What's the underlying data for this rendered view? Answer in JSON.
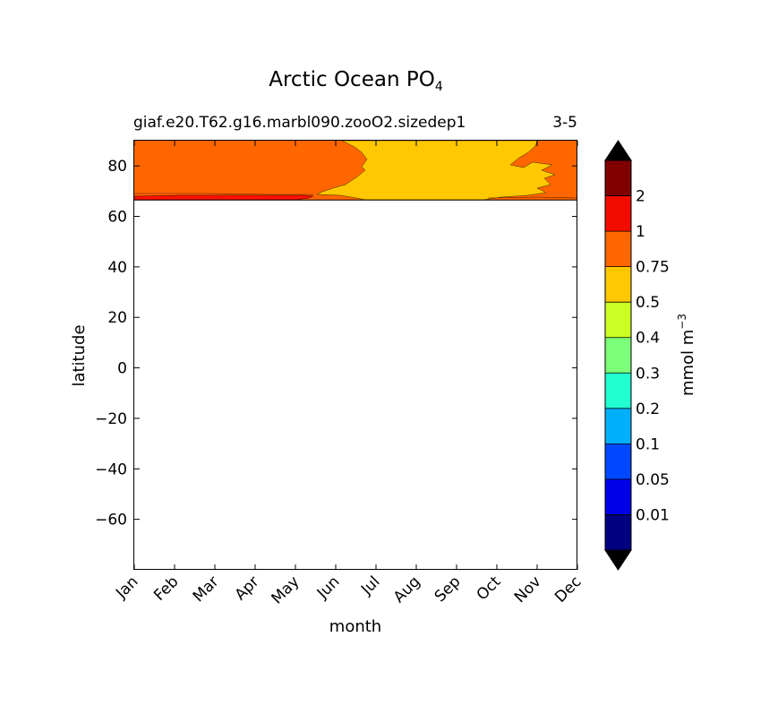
{
  "chart_data": {
    "type": "heatmap",
    "title": "Arctic Ocean PO",
    "title_subscript": "4",
    "subtitle_left": "giaf.e20.T62.g16.marbl090.zooO2.sizedep1",
    "subtitle_right": "3-5",
    "xlabel": "month",
    "ylabel": "latitude",
    "x_categories": [
      "Jan",
      "Feb",
      "Mar",
      "Apr",
      "May",
      "Jun",
      "Jul",
      "Aug",
      "Sep",
      "Oct",
      "Nov",
      "Dec"
    ],
    "xlim": [
      0,
      11
    ],
    "ylim": [
      -80,
      90
    ],
    "yticks": [
      80,
      60,
      40,
      20,
      0,
      -20,
      -40,
      -60
    ],
    "ytick_labels": [
      "80",
      "60",
      "40",
      "20",
      "0",
      "−20",
      "−40",
      "−60"
    ],
    "data_lat_range": [
      66.5,
      90
    ],
    "regions": [
      {
        "range": "0.75-1",
        "color": "#ff6600",
        "description_months": "Jan to late Jun and early Nov to Dec, above about 68N"
      },
      {
        "range": "0.5-0.75",
        "color": "#ffc800",
        "description_months": "late Jun to late Oct"
      },
      {
        "range": "1-2",
        "color": "#ff1100",
        "description_months": "Jan to mid Jun, near 66.5-68N"
      }
    ],
    "colorbar": {
      "label": "mmol m",
      "label_superscript": "−3",
      "levels": [
        "0.01",
        "0.05",
        "0.1",
        "0.2",
        "0.3",
        "0.4",
        "0.5",
        "0.75",
        "1",
        "2"
      ],
      "colors": [
        "#000080",
        "#0000e8",
        "#0048ff",
        "#00b0ff",
        "#22ffd0",
        "#7cff79",
        "#ccff22",
        "#ffc800",
        "#ff6600",
        "#f20c00",
        "#800000"
      ],
      "extend_colors": {
        "low": "#000000",
        "high": "#000000"
      }
    }
  }
}
